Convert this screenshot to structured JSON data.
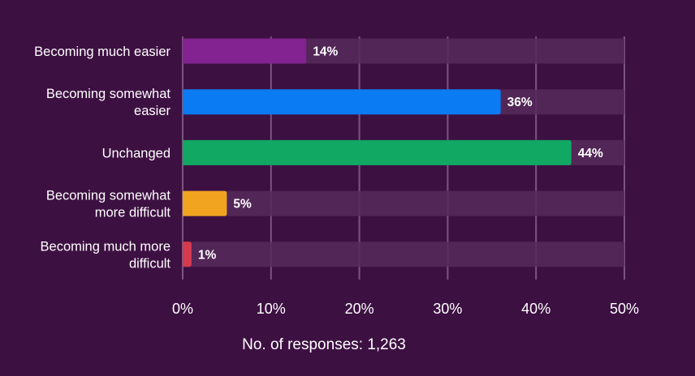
{
  "chart_data": {
    "type": "bar",
    "orientation": "horizontal",
    "categories": [
      [
        "Becoming much easier"
      ],
      [
        "Becoming somewhat",
        "easier"
      ],
      [
        "Unchanged"
      ],
      [
        "Becoming somewhat",
        "more difficult"
      ],
      [
        "Becoming much more",
        "difficult"
      ]
    ],
    "values": [
      14,
      36,
      44,
      5,
      1
    ],
    "value_labels": [
      "14%",
      "36%",
      "44%",
      "5%",
      "1%"
    ],
    "bar_colors": [
      "#822391",
      "#0a7bf2",
      "#10a862",
      "#f1a41f",
      "#d53a4f"
    ],
    "track_color": "#562a5b",
    "gridline_color": "#7a5580",
    "xlim": [
      0,
      50
    ],
    "xticks": [
      0,
      10,
      20,
      30,
      40,
      50
    ],
    "xtick_labels": [
      "0%",
      "10%",
      "20%",
      "30%",
      "40%",
      "50%"
    ],
    "grid": true,
    "footnote": "No. of responses: 1,263",
    "title": "",
    "xlabel": "",
    "ylabel": ""
  }
}
